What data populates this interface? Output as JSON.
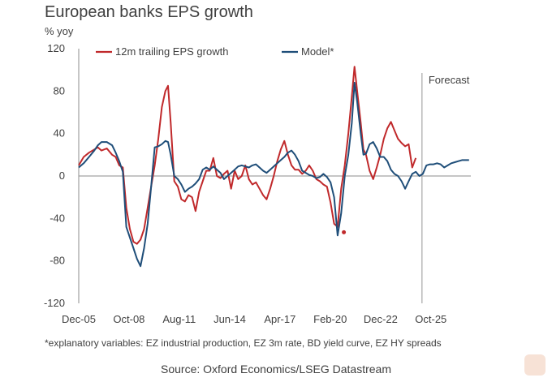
{
  "chart_data": {
    "type": "line",
    "title": "European banks EPS growth",
    "ylabel": "% yoy",
    "xlabel": "",
    "ylim": [
      -120,
      120
    ],
    "yticks": [
      "120",
      "80",
      "40",
      "0",
      "-40",
      "-80",
      "-120"
    ],
    "xlim": [
      2005.92,
      2028.0
    ],
    "xticks": [
      {
        "label": "Dec-05",
        "x": 2005.92
      },
      {
        "label": "Oct-08",
        "x": 2008.75
      },
      {
        "label": "Aug-11",
        "x": 2011.58
      },
      {
        "label": "Jun-14",
        "x": 2014.42
      },
      {
        "label": "Apr-17",
        "x": 2017.25
      },
      {
        "label": "Feb-20",
        "x": 2020.08
      },
      {
        "label": "Dec-22",
        "x": 2022.92
      },
      {
        "label": "Oct-25",
        "x": 2025.75
      }
    ],
    "forecast_start": 2025.25,
    "forecast_label": "Forecast",
    "legend": "top",
    "grid": false,
    "series": [
      {
        "name": "12m trailing EPS growth",
        "color": "#c0292b",
        "points": [
          [
            2005.92,
            10
          ],
          [
            2006.2,
            18
          ],
          [
            2006.5,
            22
          ],
          [
            2006.8,
            25
          ],
          [
            2007.0,
            27
          ],
          [
            2007.2,
            24
          ],
          [
            2007.5,
            26
          ],
          [
            2007.8,
            20
          ],
          [
            2008.0,
            18
          ],
          [
            2008.2,
            10
          ],
          [
            2008.4,
            8
          ],
          [
            2008.6,
            -30
          ],
          [
            2008.8,
            -50
          ],
          [
            2009.0,
            -62
          ],
          [
            2009.2,
            -64
          ],
          [
            2009.4,
            -60
          ],
          [
            2009.6,
            -50
          ],
          [
            2009.8,
            -30
          ],
          [
            2010.0,
            -10
          ],
          [
            2010.2,
            10
          ],
          [
            2010.4,
            35
          ],
          [
            2010.6,
            65
          ],
          [
            2010.8,
            80
          ],
          [
            2010.95,
            85
          ],
          [
            2011.1,
            50
          ],
          [
            2011.3,
            -5
          ],
          [
            2011.5,
            -10
          ],
          [
            2011.7,
            -22
          ],
          [
            2011.9,
            -24
          ],
          [
            2012.1,
            -18
          ],
          [
            2012.3,
            -20
          ],
          [
            2012.5,
            -33
          ],
          [
            2012.7,
            -15
          ],
          [
            2012.9,
            -5
          ],
          [
            2013.1,
            5
          ],
          [
            2013.3,
            5
          ],
          [
            2013.5,
            17
          ],
          [
            2013.7,
            0
          ],
          [
            2013.9,
            -2
          ],
          [
            2014.1,
            2
          ],
          [
            2014.3,
            5
          ],
          [
            2014.5,
            -12
          ],
          [
            2014.7,
            5
          ],
          [
            2014.9,
            -3
          ],
          [
            2015.1,
            0
          ],
          [
            2015.3,
            10
          ],
          [
            2015.5,
            -3
          ],
          [
            2015.7,
            -8
          ],
          [
            2015.9,
            -6
          ],
          [
            2016.1,
            -12
          ],
          [
            2016.3,
            -18
          ],
          [
            2016.5,
            -22
          ],
          [
            2016.7,
            -12
          ],
          [
            2016.9,
            0
          ],
          [
            2017.1,
            14
          ],
          [
            2017.3,
            25
          ],
          [
            2017.5,
            33
          ],
          [
            2017.7,
            20
          ],
          [
            2017.9,
            10
          ],
          [
            2018.1,
            6
          ],
          [
            2018.3,
            6
          ],
          [
            2018.5,
            2
          ],
          [
            2018.7,
            5
          ],
          [
            2018.9,
            10
          ],
          [
            2019.1,
            5
          ],
          [
            2019.3,
            -3
          ],
          [
            2019.5,
            -5
          ],
          [
            2019.7,
            -8
          ],
          [
            2019.9,
            -10
          ],
          [
            2020.1,
            -25
          ],
          [
            2020.3,
            -45
          ],
          [
            2020.5,
            -48
          ],
          [
            2020.7,
            -12
          ],
          [
            2020.9,
            10
          ],
          [
            2021.1,
            40
          ],
          [
            2021.3,
            75
          ],
          [
            2021.45,
            103
          ],
          [
            2021.6,
            80
          ],
          [
            2021.8,
            50
          ],
          [
            2021.95,
            25
          ],
          [
            2022.1,
            20
          ],
          [
            2022.3,
            5
          ],
          [
            2022.5,
            -3
          ],
          [
            2022.7,
            8
          ],
          [
            2022.9,
            20
          ],
          [
            2023.1,
            35
          ],
          [
            2023.3,
            45
          ],
          [
            2023.5,
            51
          ],
          [
            2023.7,
            43
          ],
          [
            2023.9,
            35
          ],
          [
            2024.1,
            31
          ],
          [
            2024.3,
            28
          ],
          [
            2024.5,
            30
          ],
          [
            2024.7,
            8
          ],
          [
            2024.9,
            17
          ]
        ],
        "outlier": [
          2020.85,
          -53
        ]
      },
      {
        "name": "Model*",
        "color": "#1f4e79",
        "points": [
          [
            2005.92,
            8
          ],
          [
            2006.2,
            12
          ],
          [
            2006.5,
            18
          ],
          [
            2006.8,
            24
          ],
          [
            2007.0,
            29
          ],
          [
            2007.2,
            32
          ],
          [
            2007.5,
            32
          ],
          [
            2007.8,
            29
          ],
          [
            2008.0,
            22
          ],
          [
            2008.2,
            14
          ],
          [
            2008.4,
            4
          ],
          [
            2008.6,
            -48
          ],
          [
            2008.8,
            -58
          ],
          [
            2009.0,
            -68
          ],
          [
            2009.2,
            -78
          ],
          [
            2009.4,
            -85
          ],
          [
            2009.6,
            -68
          ],
          [
            2009.8,
            -45
          ],
          [
            2010.0,
            -10
          ],
          [
            2010.2,
            27
          ],
          [
            2010.4,
            28
          ],
          [
            2010.6,
            30
          ],
          [
            2010.8,
            33
          ],
          [
            2010.95,
            32
          ],
          [
            2011.1,
            20
          ],
          [
            2011.3,
            0
          ],
          [
            2011.5,
            -3
          ],
          [
            2011.7,
            -8
          ],
          [
            2011.9,
            -15
          ],
          [
            2012.1,
            -12
          ],
          [
            2012.3,
            -10
          ],
          [
            2012.5,
            -7
          ],
          [
            2012.7,
            -3
          ],
          [
            2012.9,
            6
          ],
          [
            2013.1,
            8
          ],
          [
            2013.3,
            6
          ],
          [
            2013.5,
            9
          ],
          [
            2013.7,
            6
          ],
          [
            2013.9,
            3
          ],
          [
            2014.1,
            -3
          ],
          [
            2014.3,
            0
          ],
          [
            2014.5,
            3
          ],
          [
            2014.7,
            6
          ],
          [
            2014.9,
            9
          ],
          [
            2015.1,
            10
          ],
          [
            2015.3,
            9
          ],
          [
            2015.5,
            8
          ],
          [
            2015.7,
            10
          ],
          [
            2015.9,
            11
          ],
          [
            2016.1,
            8
          ],
          [
            2016.3,
            5
          ],
          [
            2016.5,
            3
          ],
          [
            2016.7,
            6
          ],
          [
            2016.9,
            9
          ],
          [
            2017.1,
            12
          ],
          [
            2017.3,
            15
          ],
          [
            2017.5,
            18
          ],
          [
            2017.7,
            22
          ],
          [
            2017.9,
            24
          ],
          [
            2018.1,
            20
          ],
          [
            2018.3,
            14
          ],
          [
            2018.5,
            5
          ],
          [
            2018.7,
            3
          ],
          [
            2018.9,
            1
          ],
          [
            2019.1,
            0
          ],
          [
            2019.3,
            -2
          ],
          [
            2019.5,
            -1
          ],
          [
            2019.7,
            2
          ],
          [
            2019.9,
            -1
          ],
          [
            2020.1,
            -6
          ],
          [
            2020.3,
            -20
          ],
          [
            2020.5,
            -56
          ],
          [
            2020.7,
            -35
          ],
          [
            2020.9,
            0
          ],
          [
            2021.1,
            20
          ],
          [
            2021.3,
            50
          ],
          [
            2021.45,
            88
          ],
          [
            2021.6,
            70
          ],
          [
            2021.8,
            40
          ],
          [
            2021.95,
            20
          ],
          [
            2022.1,
            21
          ],
          [
            2022.3,
            30
          ],
          [
            2022.5,
            32
          ],
          [
            2022.7,
            26
          ],
          [
            2022.9,
            18
          ],
          [
            2023.1,
            18
          ],
          [
            2023.3,
            14
          ],
          [
            2023.5,
            6
          ],
          [
            2023.7,
            2
          ],
          [
            2023.9,
            0
          ],
          [
            2024.1,
            -5
          ],
          [
            2024.3,
            -12
          ],
          [
            2024.5,
            -5
          ],
          [
            2024.7,
            2
          ],
          [
            2024.9,
            4
          ],
          [
            2025.1,
            0
          ],
          [
            2025.3,
            2
          ],
          [
            2025.5,
            10
          ],
          [
            2025.7,
            11
          ],
          [
            2025.9,
            11
          ],
          [
            2026.1,
            12
          ],
          [
            2026.3,
            11
          ],
          [
            2026.5,
            8
          ],
          [
            2026.7,
            10
          ],
          [
            2026.9,
            12
          ],
          [
            2027.1,
            13
          ],
          [
            2027.3,
            14
          ],
          [
            2027.5,
            15
          ],
          [
            2027.7,
            15
          ],
          [
            2027.9,
            15
          ]
        ]
      }
    ]
  },
  "footnote": "*explanatory variables: EZ industrial production, EZ 3m rate, BD yield curve, EZ HY spreads",
  "source": "Source: Oxford Economics/LSEG Datastream",
  "corner_icon": "zoom-icon"
}
